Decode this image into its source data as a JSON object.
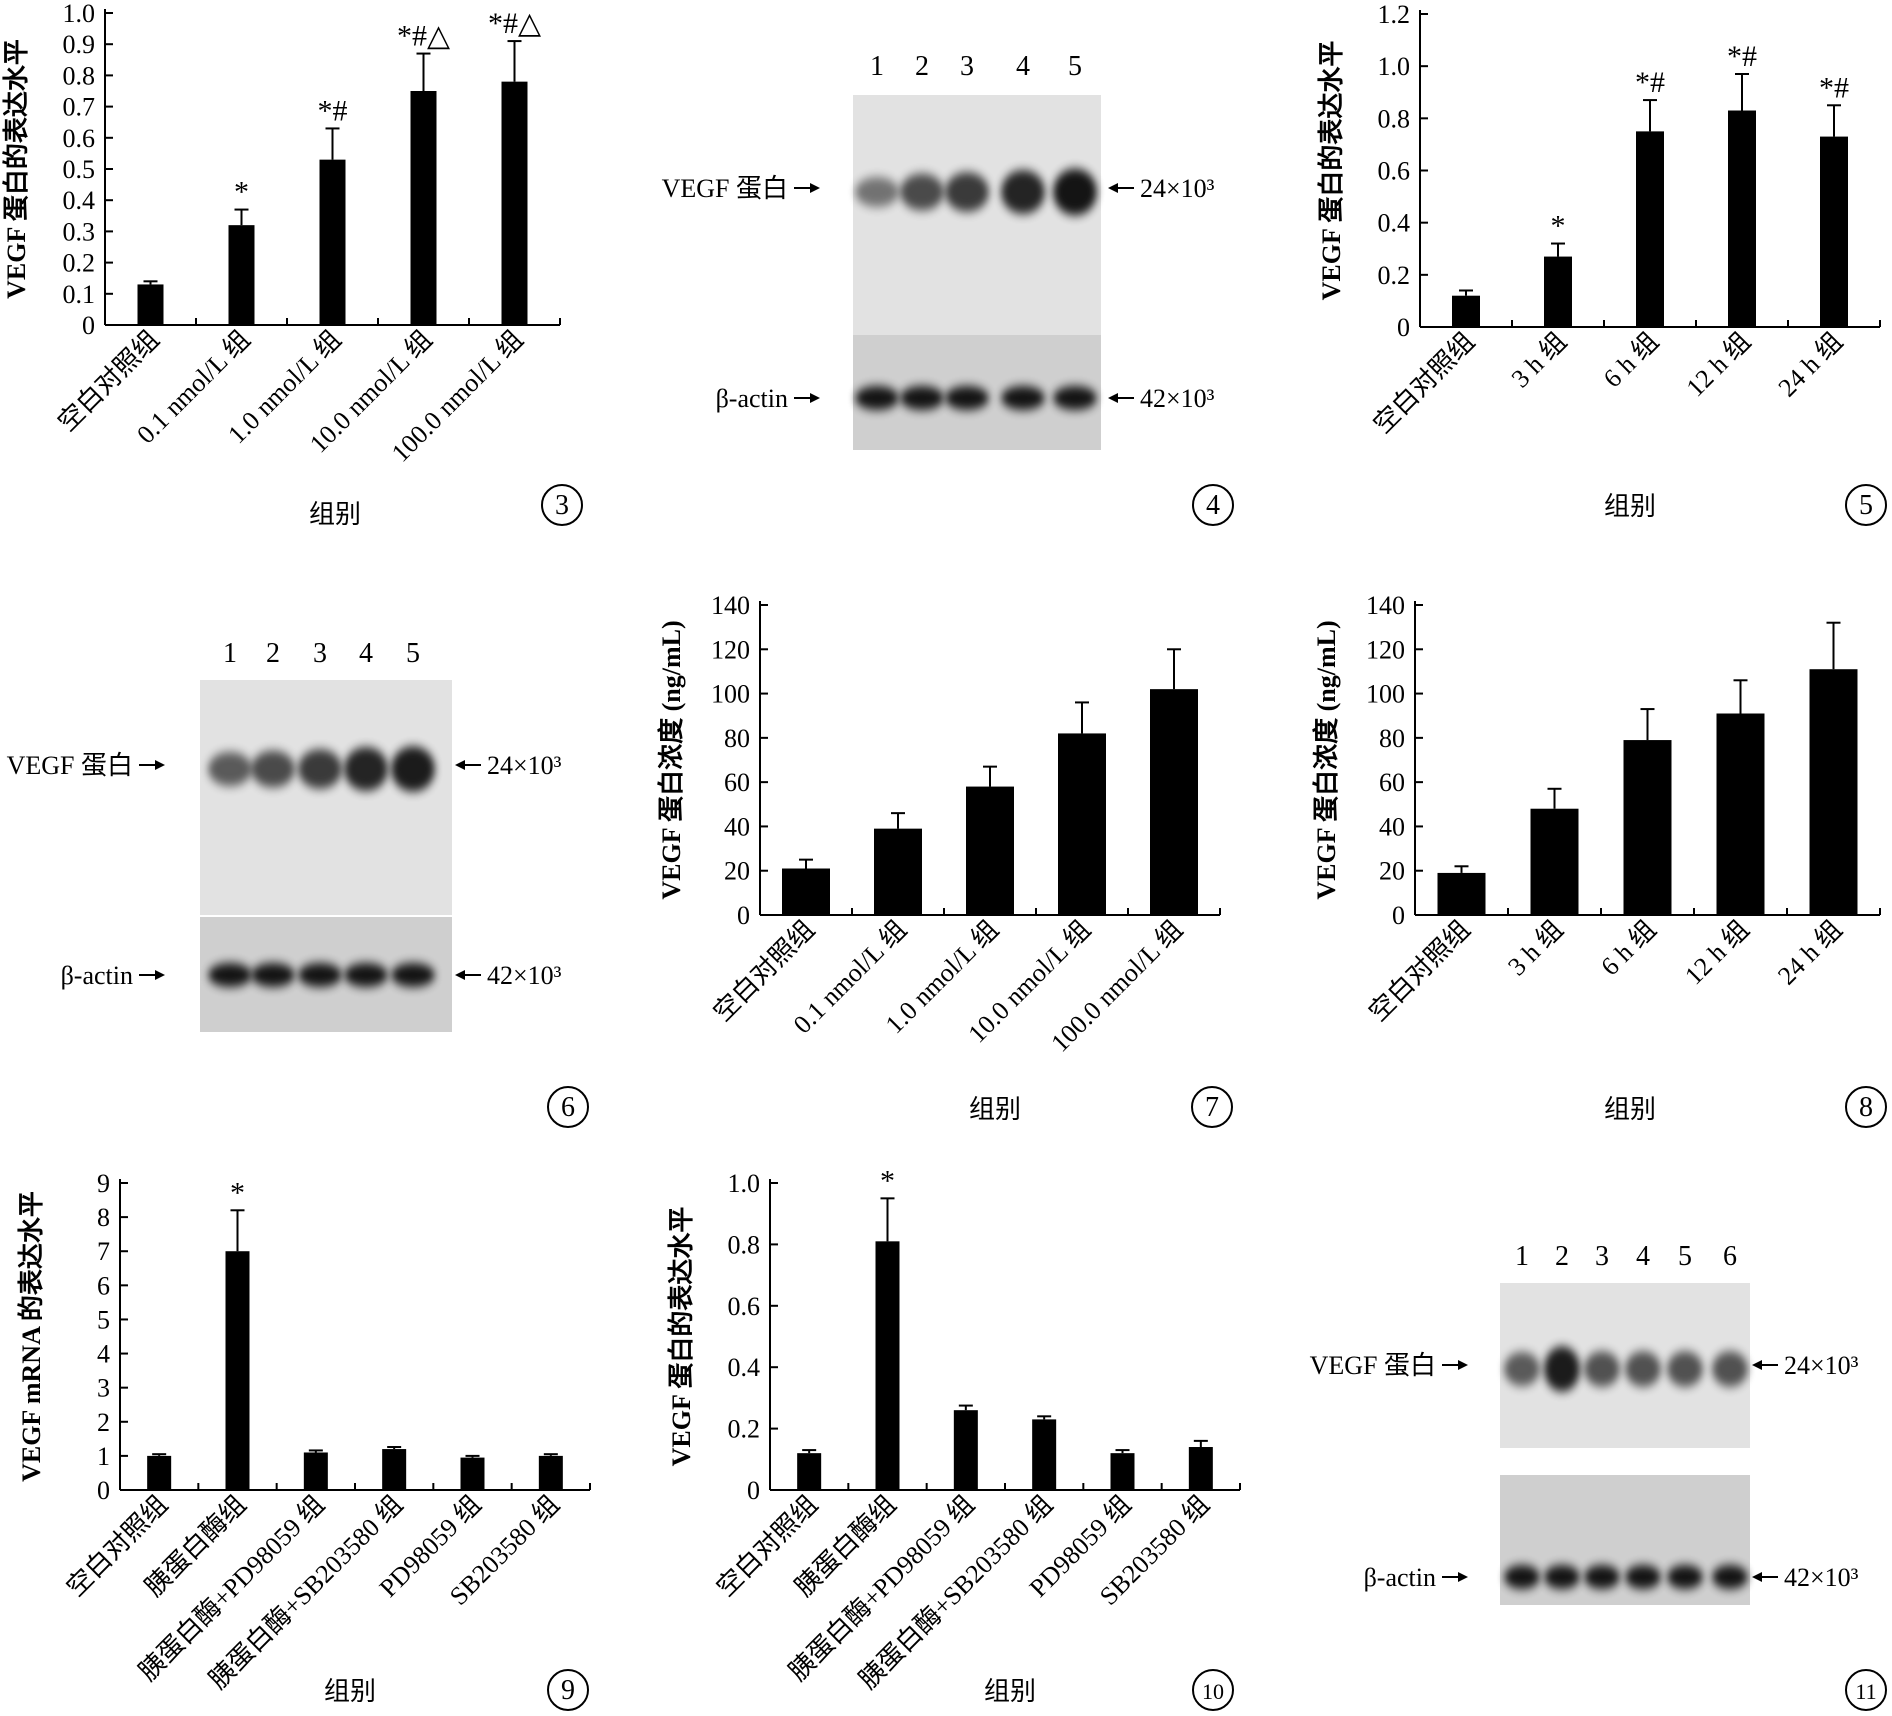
{
  "figure": {
    "group_label": "组别",
    "labels": {
      "vegf_protein": "VEGF 蛋白",
      "beta_actin": "β-actin"
    }
  },
  "chart_data": [
    {
      "panel": "3",
      "type": "bar",
      "ylabel": "VEGF 蛋白的表达水平",
      "xlabel": "组别",
      "ylim": [
        0,
        1.0
      ],
      "yticks": [
        "0",
        "0.1",
        "0.2",
        "0.3",
        "0.4",
        "0.5",
        "0.6",
        "0.7",
        "0.8",
        "0.9",
        "1.0"
      ],
      "categories": [
        "空白对照组",
        "0.1 nmol/L 组",
        "1.0 nmol/L 组",
        "10.0 nmol/L 组",
        "100.0 nmol/L 组"
      ],
      "values": [
        0.13,
        0.32,
        0.53,
        0.75,
        0.78
      ],
      "errors": [
        0.01,
        0.05,
        0.1,
        0.12,
        0.13
      ],
      "annotations": [
        "",
        "*",
        "*#",
        "*#△",
        "*#△"
      ]
    },
    {
      "panel": "5",
      "type": "bar",
      "ylabel": "VEGF 蛋白的表达水平",
      "xlabel": "组别",
      "ylim": [
        0,
        1.2
      ],
      "yticks": [
        "0",
        "0.2",
        "0.4",
        "0.6",
        "0.8",
        "1.0",
        "1.2"
      ],
      "categories": [
        "空白对照组",
        "3 h 组",
        "6 h 组",
        "12 h 组",
        "24 h 组"
      ],
      "values": [
        0.12,
        0.27,
        0.75,
        0.83,
        0.73
      ],
      "errors": [
        0.02,
        0.05,
        0.12,
        0.14,
        0.12
      ],
      "annotations": [
        "",
        "*",
        "*#",
        "*#",
        "*#"
      ]
    },
    {
      "panel": "7",
      "type": "bar",
      "ylabel": "VEGF 蛋白浓度 (ng/mL)",
      "xlabel": "组别",
      "ylim": [
        0,
        140
      ],
      "yticks": [
        "0",
        "20",
        "40",
        "60",
        "80",
        "100",
        "120",
        "140"
      ],
      "categories": [
        "空白对照组",
        "0.1 nmol/L 组",
        "1.0 nmol/L 组",
        "10.0 nmol/L 组",
        "100.0 nmol/L 组"
      ],
      "values": [
        21,
        39,
        58,
        82,
        102
      ],
      "errors": [
        4,
        7,
        9,
        14,
        18
      ],
      "annotations": [
        "",
        "",
        "",
        "",
        ""
      ]
    },
    {
      "panel": "8",
      "type": "bar",
      "ylabel": "VEGF 蛋白浓度 (ng/mL)",
      "xlabel": "组别",
      "ylim": [
        0,
        140
      ],
      "yticks": [
        "0",
        "20",
        "40",
        "60",
        "80",
        "100",
        "120",
        "140"
      ],
      "categories": [
        "空白对照组",
        "3 h 组",
        "6 h 组",
        "12 h 组",
        "24 h 组"
      ],
      "values": [
        19,
        48,
        79,
        91,
        111
      ],
      "errors": [
        3,
        9,
        14,
        15,
        21
      ],
      "annotations": [
        "",
        "",
        "",
        "",
        ""
      ]
    },
    {
      "panel": "9",
      "type": "bar",
      "ylabel": "VEGF mRNA 的表达水平",
      "xlabel": "组别",
      "ylim": [
        0,
        9
      ],
      "yticks": [
        "0",
        "1",
        "2",
        "3",
        "4",
        "5",
        "6",
        "7",
        "8",
        "9"
      ],
      "categories": [
        "空白对照组",
        "胰蛋白酶组",
        "胰蛋白酶+PD98059 组",
        "胰蛋白酶+SB203580 组",
        "PD98059 组",
        "SB203580 组"
      ],
      "values": [
        1.0,
        7.0,
        1.1,
        1.2,
        0.95,
        1.0
      ],
      "errors": [
        0.05,
        1.2,
        0.06,
        0.06,
        0.05,
        0.05
      ],
      "annotations": [
        "",
        "*",
        "",
        "",
        "",
        ""
      ]
    },
    {
      "panel": "10",
      "type": "bar",
      "ylabel": "VEGF 蛋白的表达水平",
      "xlabel": "组别",
      "ylim": [
        0,
        1.0
      ],
      "yticks": [
        "0",
        "0.2",
        "0.4",
        "0.6",
        "0.8",
        "1.0"
      ],
      "categories": [
        "空白对照组",
        "胰蛋白酶组",
        "胰蛋白酶+PD98059 组",
        "胰蛋白酶+SB203580 组",
        "PD98059 组",
        "SB203580 组"
      ],
      "values": [
        0.12,
        0.81,
        0.26,
        0.23,
        0.12,
        0.14
      ],
      "errors": [
        0.01,
        0.14,
        0.015,
        0.01,
        0.01,
        0.02
      ],
      "annotations": [
        "",
        "*",
        "",
        "",
        "",
        ""
      ]
    }
  ],
  "blots": [
    {
      "panel": "4",
      "lanes": [
        "1",
        "2",
        "3",
        "4",
        "5"
      ],
      "vegf_size": "24×10³",
      "actin_size": "42×10³",
      "vegf_intensity": [
        0.35,
        0.6,
        0.7,
        0.85,
        0.95
      ]
    },
    {
      "panel": "6",
      "lanes": [
        "1",
        "2",
        "3",
        "4",
        "5"
      ],
      "vegf_size": "24×10³",
      "actin_size": "42×10³",
      "vegf_intensity": [
        0.5,
        0.6,
        0.7,
        0.85,
        0.9
      ]
    },
    {
      "panel": "11",
      "lanes": [
        "1",
        "2",
        "3",
        "4",
        "5",
        "6"
      ],
      "vegf_size": "24×10³",
      "actin_size": "42×10³",
      "vegf_intensity": [
        0.5,
        0.9,
        0.55,
        0.55,
        0.55,
        0.55
      ]
    }
  ]
}
